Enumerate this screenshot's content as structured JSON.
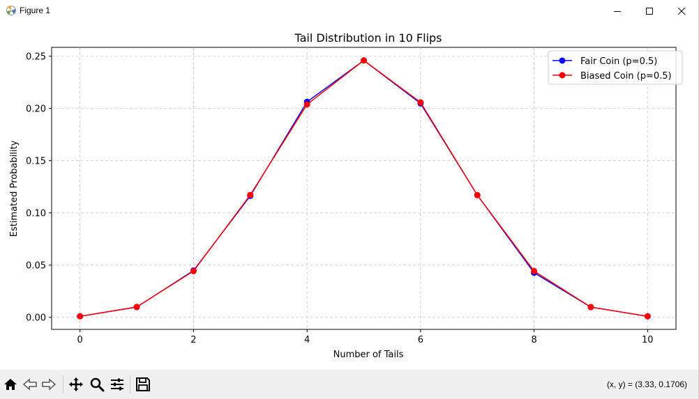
{
  "window": {
    "title": "Figure 1"
  },
  "toolbar": {
    "tools": [
      "home-icon",
      "back-arrow-icon",
      "forward-arrow-icon",
      "pan-move-icon",
      "zoom-magnifier-icon",
      "subplots-config-icon",
      "save-floppy-icon"
    ],
    "coords_readout": "(x, y) = (3.33, 0.1706)"
  },
  "chart_data": {
    "type": "line",
    "title": "Tail Distribution in 10 Flips",
    "xlabel": "Number of Tails",
    "ylabel": "Estimated Probability",
    "xlim": [
      -0.5,
      10.5
    ],
    "ylim": [
      -0.0115,
      0.2585
    ],
    "xticks": [
      0,
      2,
      4,
      6,
      8,
      10
    ],
    "xtick_labels": [
      "0",
      "2",
      "4",
      "6",
      "8",
      "10"
    ],
    "yticks": [
      0.0,
      0.05,
      0.1,
      0.15,
      0.2,
      0.25
    ],
    "ytick_labels": [
      "0.00",
      "0.05",
      "0.10",
      "0.15",
      "0.20",
      "0.25"
    ],
    "grid": true,
    "legend_position": "top-right",
    "x": [
      0,
      1,
      2,
      3,
      4,
      5,
      6,
      7,
      8,
      9,
      10
    ],
    "series": [
      {
        "name": "Fair Coin (p=0.5)",
        "color": "#0000ff",
        "marker": "circle",
        "values": [
          0.001,
          0.0098,
          0.0448,
          0.1163,
          0.2063,
          0.246,
          0.2048,
          0.117,
          0.0427,
          0.0098,
          0.001
        ]
      },
      {
        "name": "Biased Coin (p=0.5)",
        "color": "#ff0000",
        "marker": "circle",
        "values": [
          0.001,
          0.01,
          0.0443,
          0.1172,
          0.2038,
          0.246,
          0.2058,
          0.117,
          0.0443,
          0.0098,
          0.001
        ]
      }
    ]
  }
}
